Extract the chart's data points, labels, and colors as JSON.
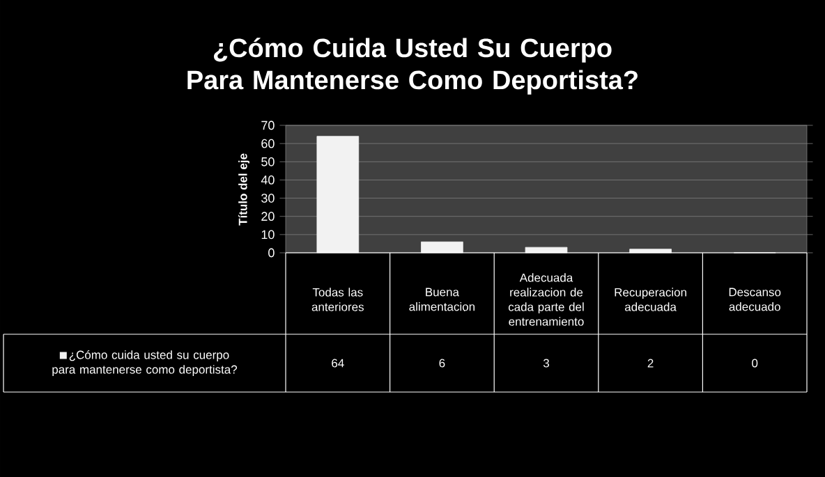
{
  "chart_data": {
    "type": "bar",
    "title": "¿Cómo Cuida Usted Su Cuerpo Para Mantenerse Como Deportista?",
    "ylabel": "Título del eje",
    "categories": [
      "Todas las anteriores",
      "Buena alimentacion",
      "Adecuada realizacion de cada parte del entrenamiento",
      "Recuperacion adecuada",
      "Descanso adecuado"
    ],
    "series": [
      {
        "name": "¿Cómo cuida usted su cuerpo para mantenerse como deportista?",
        "color": "#f2f2f2",
        "values": [
          64,
          6,
          3,
          2,
          0
        ]
      }
    ],
    "ylim": [
      0,
      70
    ],
    "yticks": [
      0,
      10,
      20,
      30,
      40,
      50,
      60,
      70
    ],
    "grid": "y",
    "legend": "bottom",
    "data_labels": true
  }
}
